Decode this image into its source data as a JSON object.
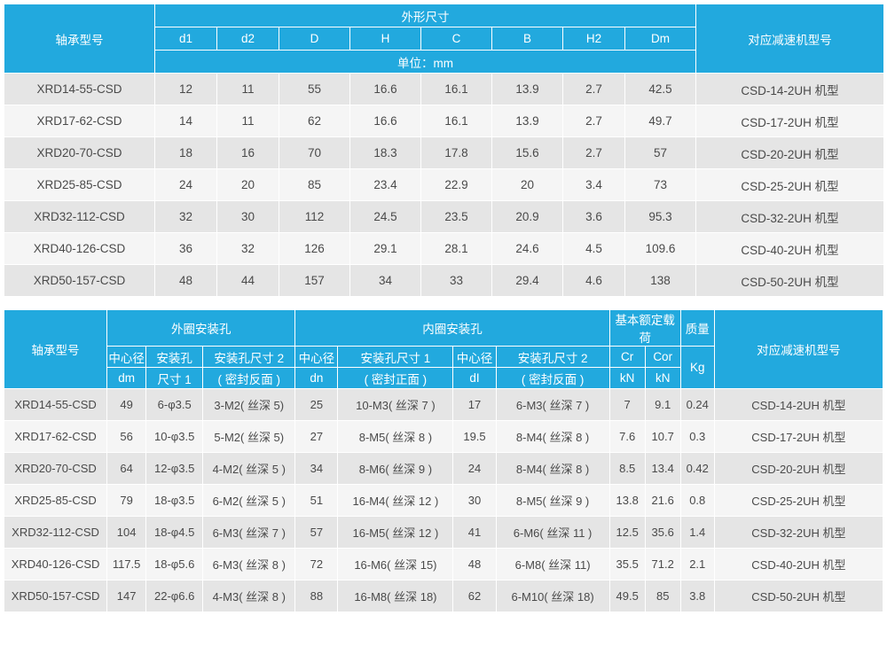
{
  "colors": {
    "header_bg": "#22a9de",
    "header_text": "#ffffff",
    "row_even": "#e5e5e5",
    "row_odd": "#f5f5f5",
    "border": "#ffffff",
    "text": "#4a4a4a"
  },
  "t1": {
    "h_model": "轴承型号",
    "h_dims": "外形尺寸",
    "h_match": "对应减速机型号",
    "cols": {
      "d1": "d1",
      "d2": "d2",
      "D": "D",
      "H": "H",
      "C": "C",
      "B": "B",
      "H2": "H2",
      "Dm": "Dm"
    },
    "unit": "单位：mm",
    "rows": [
      {
        "m": "XRD14-55-CSD",
        "d1": "12",
        "d2": "11",
        "D": "55",
        "H": "16.6",
        "C": "16.1",
        "B": "13.9",
        "H2": "2.7",
        "Dm": "42.5",
        "match": "CSD-14-2UH 机型"
      },
      {
        "m": "XRD17-62-CSD",
        "d1": "14",
        "d2": "11",
        "D": "62",
        "H": "16.6",
        "C": "16.1",
        "B": "13.9",
        "H2": "2.7",
        "Dm": "49.7",
        "match": "CSD-17-2UH 机型"
      },
      {
        "m": "XRD20-70-CSD",
        "d1": "18",
        "d2": "16",
        "D": "70",
        "H": "18.3",
        "C": "17.8",
        "B": "15.6",
        "H2": "2.7",
        "Dm": "57",
        "match": "CSD-20-2UH 机型"
      },
      {
        "m": "XRD25-85-CSD",
        "d1": "24",
        "d2": "20",
        "D": "85",
        "H": "23.4",
        "C": "22.9",
        "B": "20",
        "H2": "3.4",
        "Dm": "73",
        "match": "CSD-25-2UH 机型"
      },
      {
        "m": "XRD32-112-CSD",
        "d1": "32",
        "d2": "30",
        "D": "112",
        "H": "24.5",
        "C": "23.5",
        "B": "20.9",
        "H2": "3.6",
        "Dm": "95.3",
        "match": "CSD-32-2UH 机型"
      },
      {
        "m": "XRD40-126-CSD",
        "d1": "36",
        "d2": "32",
        "D": "126",
        "H": "29.1",
        "C": "28.1",
        "B": "24.6",
        "H2": "4.5",
        "Dm": "109.6",
        "match": "CSD-40-2UH 机型"
      },
      {
        "m": "XRD50-157-CSD",
        "d1": "48",
        "d2": "44",
        "D": "157",
        "H": "34",
        "C": "33",
        "B": "29.4",
        "H2": "4.6",
        "Dm": "138",
        "match": "CSD-50-2UH 机型"
      }
    ]
  },
  "t2": {
    "h_model": "轴承型号",
    "h_outer": "外圈安装孔",
    "h_inner": "内圈安装孔",
    "h_load": "基本额定载荷",
    "h_mass": "质量",
    "h_match": "对应减速机型号",
    "cols": {
      "dm1": "中心径",
      "dm2": "dm",
      "s1a": "安装孔",
      "s1b": "尺寸 1",
      "s2a": "安装孔尺寸 2",
      "s2b": "( 密封反面 )",
      "dn1": "中心径",
      "dn2": "dn",
      "i1a": "安装孔尺寸 1",
      "i1b": "( 密封正面 )",
      "dI1": "中心径",
      "dI2": "dI",
      "i2a": "安装孔尺寸 2",
      "i2b": "( 密封反面 )",
      "cr": "Cr",
      "cor": "Cor",
      "kn": "kN",
      "kg": "Kg"
    },
    "rows": [
      {
        "m": "XRD14-55-CSD",
        "dm": "49",
        "s1": "6-φ3.5",
        "s2": "3-M2( 丝深 5)",
        "dn": "25",
        "i1": "10-M3( 丝深 7 )",
        "dI": "17",
        "i2": "6-M3( 丝深 7 )",
        "cr": "7",
        "cor": "9.1",
        "kg": "0.24",
        "match": "CSD-14-2UH 机型"
      },
      {
        "m": "XRD17-62-CSD",
        "dm": "56",
        "s1": "10-φ3.5",
        "s2": "5-M2( 丝深 5)",
        "dn": "27",
        "i1": "8-M5( 丝深 8 )",
        "dI": "19.5",
        "i2": "8-M4( 丝深 8 )",
        "cr": "7.6",
        "cor": "10.7",
        "kg": "0.3",
        "match": "CSD-17-2UH 机型"
      },
      {
        "m": "XRD20-70-CSD",
        "dm": "64",
        "s1": "12-φ3.5",
        "s2": "4-M2( 丝深 5 )",
        "dn": "34",
        "i1": "8-M6( 丝深 9 )",
        "dI": "24",
        "i2": "8-M4( 丝深 8 )",
        "cr": "8.5",
        "cor": "13.4",
        "kg": "0.42",
        "match": "CSD-20-2UH 机型"
      },
      {
        "m": "XRD25-85-CSD",
        "dm": "79",
        "s1": "18-φ3.5",
        "s2": "6-M2( 丝深 5 )",
        "dn": "51",
        "i1": "16-M4( 丝深 12 )",
        "dI": "30",
        "i2": "8-M5( 丝深 9 )",
        "cr": "13.8",
        "cor": "21.6",
        "kg": "0.8",
        "match": "CSD-25-2UH 机型"
      },
      {
        "m": "XRD32-112-CSD",
        "dm": "104",
        "s1": "18-φ4.5",
        "s2": "6-M3( 丝深 7 )",
        "dn": "57",
        "i1": "16-M5( 丝深 12 )",
        "dI": "41",
        "i2": "6-M6( 丝深 11 )",
        "cr": "12.5",
        "cor": "35.6",
        "kg": "1.4",
        "match": "CSD-32-2UH 机型"
      },
      {
        "m": "XRD40-126-CSD",
        "dm": "117.5",
        "s1": "18-φ5.6",
        "s2": "6-M3( 丝深 8 )",
        "dn": "72",
        "i1": "16-M6( 丝深 15)",
        "dI": "48",
        "i2": "6-M8( 丝深 11)",
        "cr": "35.5",
        "cor": "71.2",
        "kg": "2.1",
        "match": "CSD-40-2UH 机型"
      },
      {
        "m": "XRD50-157-CSD",
        "dm": "147",
        "s1": "22-φ6.6",
        "s2": "4-M3( 丝深 8 )",
        "dn": "88",
        "i1": "16-M8( 丝深 18)",
        "dI": "62",
        "i2": "6-M10( 丝深 18)",
        "cr": "49.5",
        "cor": "85",
        "kg": "3.8",
        "match": "CSD-50-2UH 机型"
      }
    ]
  }
}
